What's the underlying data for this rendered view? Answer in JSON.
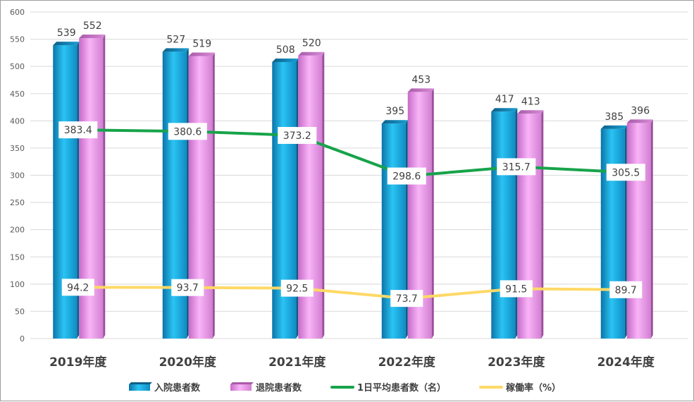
{
  "chart_data": {
    "type": "bar",
    "categories": [
      "2019年度",
      "2020年度",
      "2021年度",
      "2022年度",
      "2023年度",
      "2024年度"
    ],
    "ylim": [
      0,
      600
    ],
    "yticks": [
      0,
      50,
      100,
      150,
      200,
      250,
      300,
      350,
      400,
      450,
      500,
      550,
      600
    ],
    "grid": true,
    "legend_position": "bottom",
    "series": [
      {
        "name": "入院患者数",
        "kind": "bar",
        "color": "#1bb4ea",
        "values": [
          539,
          527,
          508,
          395,
          417,
          385
        ]
      },
      {
        "name": "退院患者数",
        "kind": "bar",
        "color": "#f39cf2",
        "values": [
          552,
          519,
          520,
          453,
          413,
          396
        ]
      },
      {
        "name": "1日平均患者数（名）",
        "kind": "line",
        "color": "#17a34a",
        "values": [
          383.4,
          380.6,
          373.2,
          298.6,
          315.7,
          305.5
        ]
      },
      {
        "name": "稼働率（%）",
        "kind": "line",
        "color": "#ffd966",
        "values": [
          94.2,
          93.7,
          92.5,
          73.7,
          91.5,
          89.7
        ]
      }
    ]
  }
}
